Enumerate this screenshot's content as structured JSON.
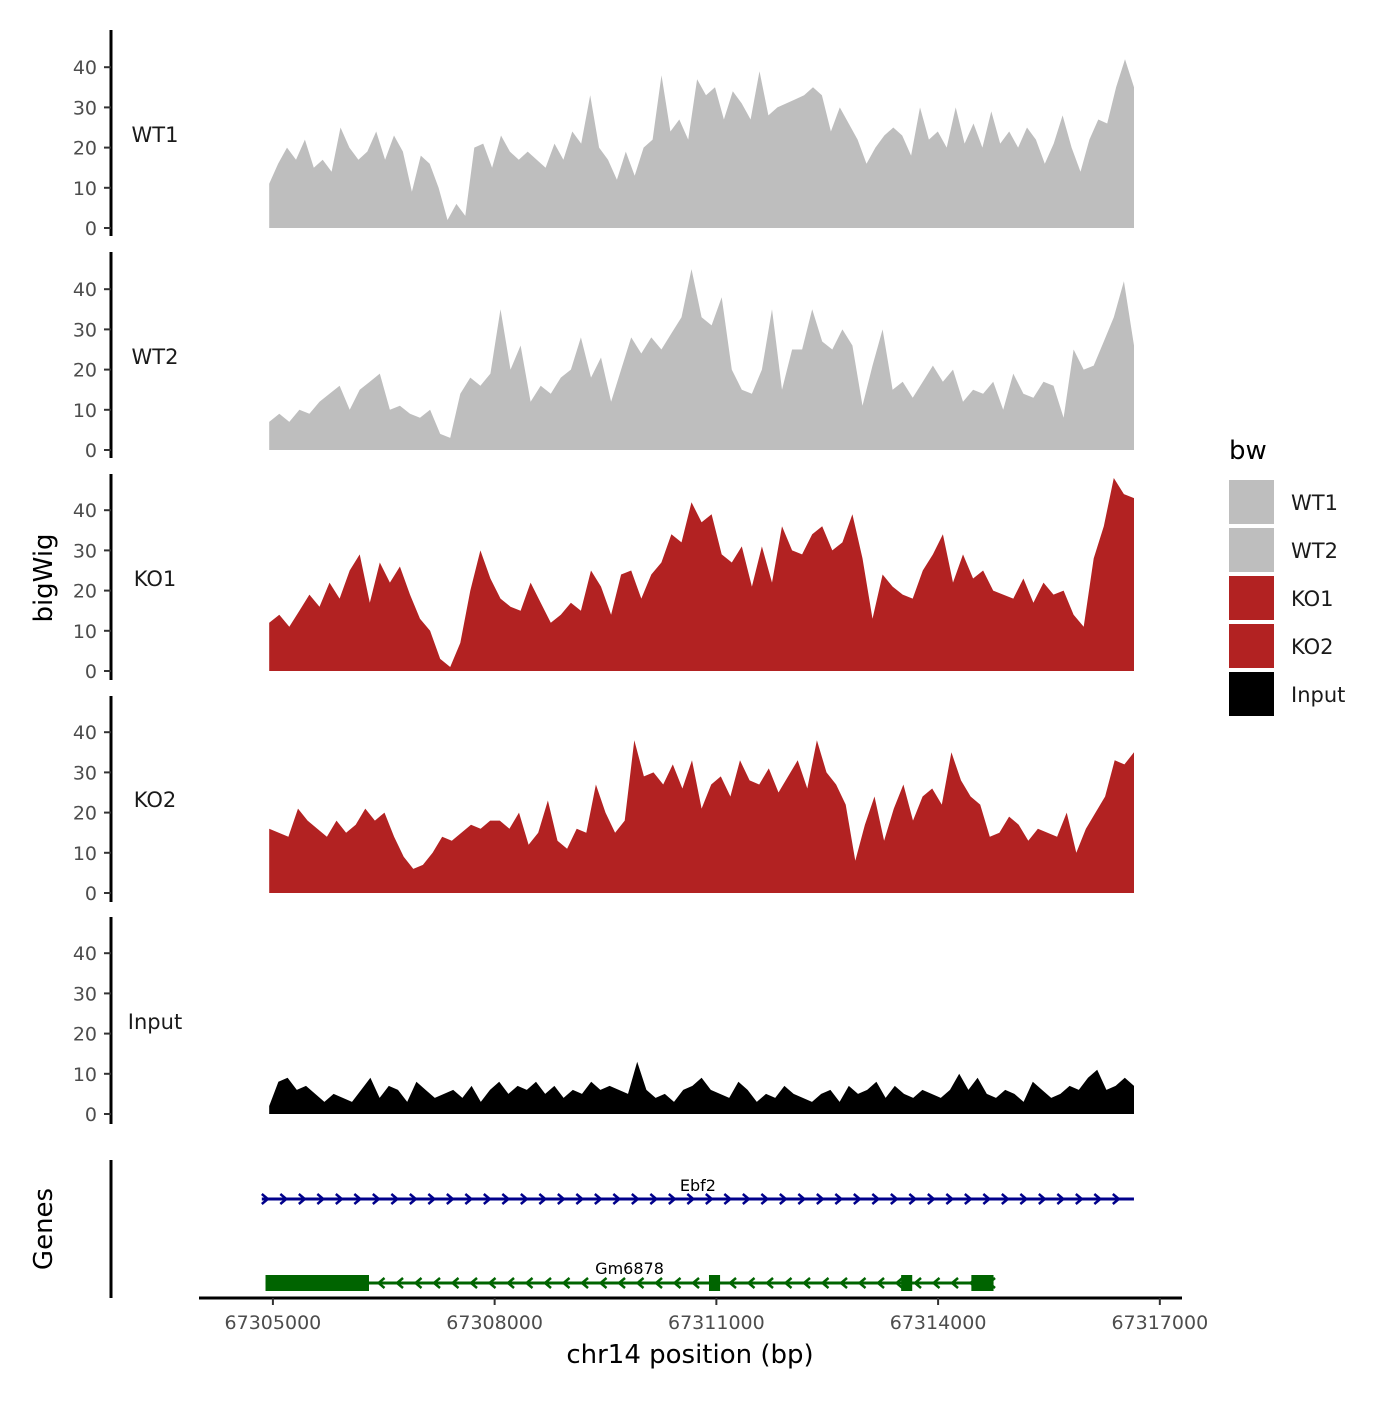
{
  "chart_data": {
    "type": "area",
    "title": "",
    "ylabel": "bigWig",
    "xlabel": "chr14 position (bp)",
    "genes_label": "Genes",
    "ylim": [
      0,
      48
    ],
    "y_ticks": [
      0,
      10,
      20,
      30,
      40
    ],
    "x_range": [
      67304000,
      67317300
    ],
    "x_ticks": [
      67305000,
      67308000,
      67311000,
      67314000,
      67317000
    ],
    "x_tick_labels": [
      "67305000",
      "67308000",
      "67311000",
      "67314000",
      "67317000"
    ],
    "data_start": 67304950,
    "data_end": 67316650,
    "legend": {
      "title": "bw",
      "entries": [
        {
          "label": "WT1",
          "color": "#bebebe"
        },
        {
          "label": "WT2",
          "color": "#bebebe"
        },
        {
          "label": "KO1",
          "color": "#b22222"
        },
        {
          "label": "KO2",
          "color": "#b22222"
        },
        {
          "label": "Input",
          "color": "#000000"
        }
      ]
    },
    "series": [
      {
        "name": "WT1",
        "color": "#bebebe",
        "values": [
          11,
          16,
          20,
          17,
          22,
          15,
          17,
          14,
          25,
          20,
          17,
          19,
          24,
          17,
          23,
          19,
          9,
          18,
          16,
          10,
          2,
          6,
          3,
          20,
          21,
          15,
          23,
          19,
          17,
          19,
          17,
          15,
          21,
          17,
          24,
          21,
          33,
          20,
          17,
          12,
          19,
          13,
          20,
          22,
          38,
          24,
          27,
          22,
          37,
          33,
          35,
          27,
          34,
          31,
          27,
          39,
          28,
          30,
          31,
          32,
          33,
          35,
          33,
          24,
          30,
          26,
          22,
          16,
          20,
          23,
          25,
          23,
          18,
          30,
          22,
          24,
          20,
          30,
          21,
          26,
          20,
          29,
          21,
          24,
          20,
          25,
          22,
          16,
          21,
          28,
          20,
          14,
          22,
          27,
          26,
          35,
          42,
          35
        ]
      },
      {
        "name": "WT2",
        "color": "#bebebe",
        "values": [
          7,
          9,
          7,
          10,
          9,
          12,
          14,
          16,
          10,
          15,
          17,
          19,
          10,
          11,
          9,
          8,
          10,
          4,
          3,
          14,
          18,
          16,
          19,
          35,
          20,
          26,
          12,
          16,
          14,
          18,
          20,
          28,
          18,
          23,
          12,
          20,
          28,
          24,
          28,
          25,
          29,
          33,
          45,
          33,
          31,
          38,
          20,
          15,
          14,
          20,
          35,
          15,
          25,
          25,
          35,
          27,
          25,
          30,
          26,
          11,
          21,
          30,
          15,
          17,
          13,
          17,
          21,
          17,
          20,
          12,
          15,
          14,
          17,
          10,
          19,
          14,
          13,
          17,
          16,
          8,
          25,
          20,
          21,
          27,
          33,
          42,
          26
        ]
      },
      {
        "name": "KO1",
        "color": "#b22222",
        "values": [
          12,
          14,
          11,
          15,
          19,
          16,
          22,
          18,
          25,
          29,
          17,
          27,
          22,
          26,
          19,
          13,
          10,
          3,
          1,
          7,
          20,
          30,
          23,
          18,
          16,
          15,
          22,
          17,
          12,
          14,
          17,
          15,
          25,
          21,
          14,
          24,
          25,
          18,
          24,
          27,
          34,
          32,
          42,
          37,
          39,
          29,
          27,
          31,
          21,
          31,
          22,
          36,
          30,
          29,
          34,
          36,
          30,
          32,
          39,
          28,
          13,
          24,
          21,
          19,
          18,
          25,
          29,
          34,
          22,
          29,
          23,
          25,
          20,
          19,
          18,
          23,
          17,
          22,
          19,
          20,
          14,
          11,
          28,
          36,
          48,
          44,
          43
        ]
      },
      {
        "name": "KO2",
        "color": "#b22222",
        "values": [
          16,
          15,
          14,
          21,
          18,
          16,
          14,
          18,
          15,
          17,
          21,
          18,
          20,
          14,
          9,
          6,
          7,
          10,
          14,
          13,
          15,
          17,
          16,
          18,
          18,
          16,
          20,
          12,
          15,
          23,
          13,
          11,
          16,
          15,
          27,
          20,
          15,
          18,
          38,
          29,
          30,
          27,
          32,
          26,
          33,
          21,
          27,
          29,
          24,
          33,
          28,
          27,
          31,
          25,
          29,
          33,
          26,
          38,
          30,
          27,
          22,
          8,
          17,
          24,
          13,
          21,
          27,
          18,
          24,
          26,
          22,
          35,
          28,
          24,
          22,
          14,
          15,
          19,
          17,
          13,
          16,
          15,
          14,
          20,
          10,
          16,
          20,
          24,
          33,
          32,
          35
        ]
      },
      {
        "name": "Input",
        "color": "#000000",
        "values": [
          2,
          8,
          9,
          6,
          7,
          5,
          3,
          5,
          4,
          3,
          6,
          9,
          4,
          7,
          6,
          3,
          8,
          6,
          4,
          5,
          6,
          4,
          7,
          3,
          6,
          8,
          5,
          7,
          6,
          8,
          5,
          7,
          4,
          6,
          5,
          8,
          6,
          7,
          6,
          5,
          13,
          6,
          4,
          5,
          3,
          6,
          7,
          9,
          6,
          5,
          4,
          8,
          6,
          3,
          5,
          4,
          7,
          5,
          4,
          3,
          5,
          6,
          3,
          7,
          5,
          6,
          8,
          4,
          7,
          5,
          4,
          6,
          5,
          4,
          6,
          10,
          6,
          9,
          5,
          4,
          6,
          5,
          3,
          8,
          6,
          4,
          5,
          7,
          6,
          9,
          11,
          6,
          7,
          9,
          7
        ]
      }
    ],
    "genes": [
      {
        "name": "Ebf2",
        "start": 67304850,
        "end": 67316650,
        "strand": "+",
        "color": "#00008b",
        "exons": []
      },
      {
        "name": "Gm6878",
        "start": 67304900,
        "end": 67314750,
        "strand": "-",
        "color": "#006400",
        "exons": [
          [
            67304900,
            67306300
          ],
          [
            67310900,
            67311050
          ],
          [
            67313500,
            67313650
          ],
          [
            67314450,
            67314750
          ]
        ]
      }
    ]
  }
}
